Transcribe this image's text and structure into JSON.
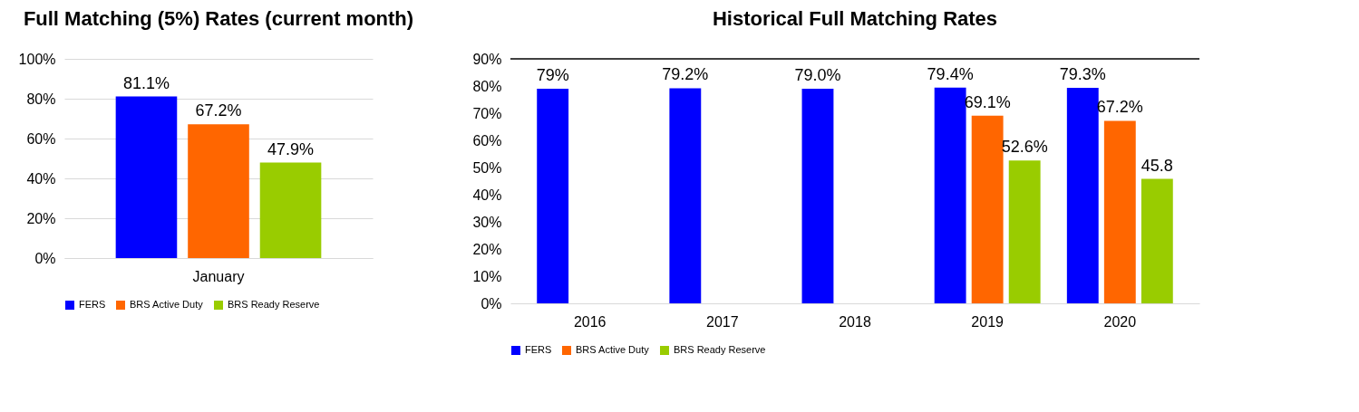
{
  "chart_data": [
    {
      "type": "bar",
      "title": "Full Matching (5%) Rates  (current month)",
      "categories": [
        "January"
      ],
      "series": [
        {
          "name": "FERS",
          "color": "#0000ff",
          "values": [
            81.1
          ],
          "value_labels": [
            "81.1%"
          ]
        },
        {
          "name": "BRS Active Duty",
          "color": "#ff6600",
          "values": [
            67.2
          ],
          "value_labels": [
            "67.2%"
          ]
        },
        {
          "name": "BRS Ready Reserve",
          "color": "#99cc00",
          "values": [
            47.9
          ],
          "value_labels": [
            "47.9%"
          ]
        }
      ],
      "ylim": [
        0,
        100
      ],
      "yticks": [
        {
          "value": 0,
          "label": "0%"
        },
        {
          "value": 20,
          "label": "20%"
        },
        {
          "value": 40,
          "label": "40%"
        },
        {
          "value": 60,
          "label": "60%"
        },
        {
          "value": 80,
          "label": "80%"
        },
        {
          "value": 100,
          "label": "100%"
        }
      ],
      "grid": "y",
      "legend": "bottom"
    },
    {
      "type": "bar",
      "title": "Historical Full Matching Rates",
      "categories": [
        "2016",
        "2017",
        "2018",
        "2019",
        "2020"
      ],
      "series": [
        {
          "name": "FERS",
          "color": "#0000ff",
          "values": [
            79,
            79.2,
            79.0,
            79.4,
            79.3
          ],
          "value_labels": [
            "79%",
            "79.2%",
            "79.0%",
            "79.4%",
            "79.3%"
          ]
        },
        {
          "name": "BRS Active Duty",
          "color": "#ff6600",
          "values": [
            null,
            null,
            null,
            69.1,
            67.2
          ],
          "value_labels": [
            null,
            null,
            null,
            "69.1%",
            "67.2%"
          ]
        },
        {
          "name": "BRS Ready Reserve",
          "color": "#99cc00",
          "values": [
            null,
            null,
            null,
            52.6,
            45.8
          ],
          "value_labels": [
            null,
            null,
            null,
            "52.6%",
            "45.8"
          ]
        }
      ],
      "ylim": [
        0,
        90
      ],
      "yticks": [
        {
          "value": 0,
          "label": "0%"
        },
        {
          "value": 10,
          "label": "10%"
        },
        {
          "value": 20,
          "label": "20%"
        },
        {
          "value": 30,
          "label": "30%"
        },
        {
          "value": 40,
          "label": "40%"
        },
        {
          "value": 50,
          "label": "50%"
        },
        {
          "value": 60,
          "label": "60%"
        },
        {
          "value": 70,
          "label": "70%"
        },
        {
          "value": 80,
          "label": "80%"
        },
        {
          "value": 90,
          "label": "90%"
        }
      ],
      "ref_lines": [
        {
          "axis": "y",
          "value": 90,
          "color": "#000000"
        }
      ],
      "grid": false,
      "legend": "bottom"
    }
  ]
}
